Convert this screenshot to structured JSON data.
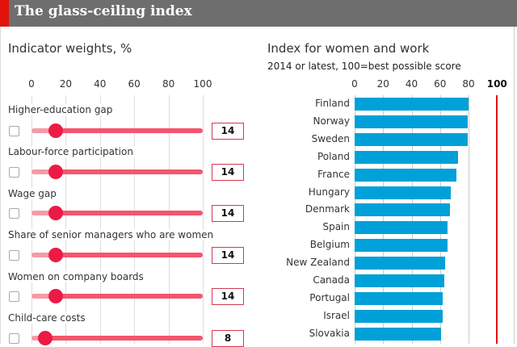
{
  "header": {
    "title": "The glass-ceiling index"
  },
  "weights": {
    "title": "Indicator weights, %",
    "ticks": [
      "0",
      "20",
      "40",
      "60",
      "80",
      "100"
    ],
    "indicators": [
      {
        "label": "Higher-education gap",
        "value": 14,
        "display": "14",
        "checked": false
      },
      {
        "label": "Labour-force participation",
        "value": 14,
        "display": "14",
        "checked": false
      },
      {
        "label": "Wage gap",
        "value": 14,
        "display": "14",
        "checked": false
      },
      {
        "label": "Share of senior managers who are women",
        "value": 14,
        "display": "14",
        "checked": false
      },
      {
        "label": "Women on company boards",
        "value": 14,
        "display": "14",
        "checked": false
      },
      {
        "label": "Child-care costs",
        "value": 8,
        "display": "8",
        "checked": false
      }
    ]
  },
  "chart_data": {
    "type": "bar",
    "title": "Index for women and work",
    "subtitle": "2014 or latest, 100=best possible score",
    "ticks": [
      "0",
      "20",
      "40",
      "60",
      "80",
      "100"
    ],
    "xlim": [
      0,
      100
    ],
    "categories": [
      "Finland",
      "Norway",
      "Sweden",
      "Poland",
      "France",
      "Hungary",
      "Denmark",
      "Spain",
      "Belgium",
      "New Zealand",
      "Canada",
      "Portugal",
      "Israel",
      "Slovakia"
    ],
    "values": [
      80,
      79.5,
      79.5,
      72.7,
      71.6,
      67.4,
      66.7,
      65.5,
      65.5,
      63.7,
      63.1,
      62,
      62,
      60.8
    ],
    "bar_color": "#00a0d8",
    "reference_line": 100,
    "reference_color": "#e3120b",
    "grid": true
  }
}
